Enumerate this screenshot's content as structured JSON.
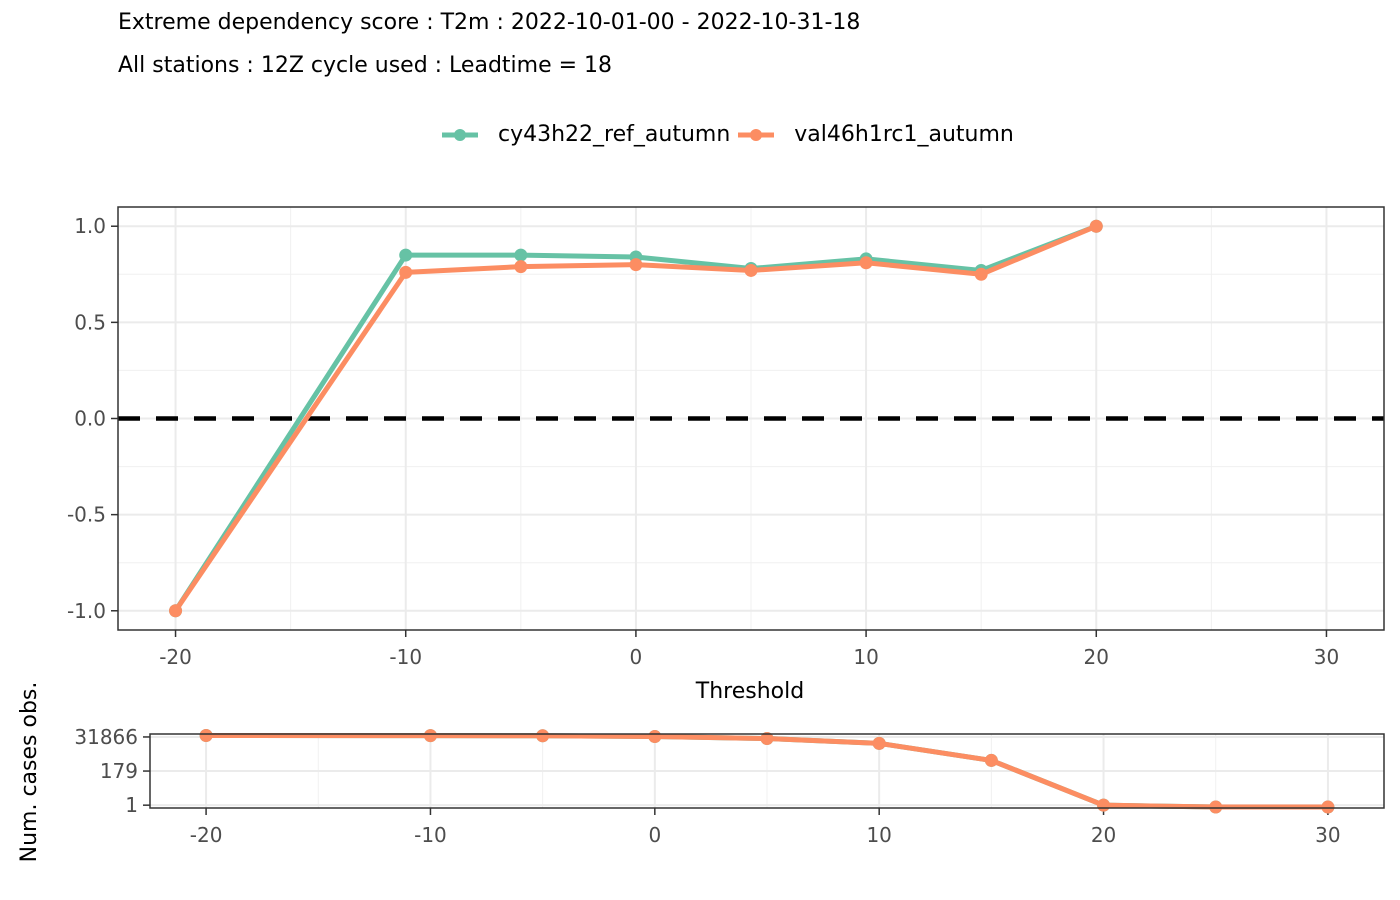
{
  "chart_data": [
    {
      "type": "line",
      "title": "Extreme dependency score : T2m : 2022-10-01-00 - 2022-10-31-18",
      "subtitle": "All stations : 12Z cycle used : Leadtime = 18",
      "xlabel": "Threshold",
      "ylabel": "",
      "xlim": [
        -22.5,
        32.5
      ],
      "ylim": [
        -1.1,
        1.1
      ],
      "x_ticks": [
        "-20",
        "-10",
        "0",
        "10",
        "20",
        "30"
      ],
      "y_ticks": [
        "-1.0",
        "-0.5",
        "0.0",
        "0.5",
        "1.0"
      ],
      "grid": true,
      "legend_position": "top",
      "reference_line": {
        "y": 0,
        "style": "dashed",
        "color": "#000000"
      },
      "series": [
        {
          "name": "cy43h22_ref_autumn",
          "color": "#66c2a5",
          "x": [
            -20,
            -10,
            -5,
            0,
            5,
            10,
            15,
            20
          ],
          "y": [
            -1.0,
            0.85,
            0.85,
            0.84,
            0.78,
            0.83,
            0.77,
            1.0
          ]
        },
        {
          "name": "val46h1rc1_autumn",
          "color": "#fc8d62",
          "x": [
            -20,
            -10,
            -5,
            0,
            5,
            10,
            15,
            20
          ],
          "y": [
            -1.0,
            0.76,
            0.79,
            0.8,
            0.77,
            0.81,
            0.75,
            1.0
          ]
        }
      ]
    },
    {
      "type": "line",
      "title": "",
      "xlabel": "",
      "ylabel": "Num. cases obs.",
      "scale": "log",
      "xlim": [
        -22.5,
        32.5
      ],
      "x_ticks": [
        "-20",
        "-10",
        "0",
        "10",
        "20",
        "30"
      ],
      "y_ticks": [
        "1",
        "179",
        "31866"
      ],
      "grid": true,
      "series": [
        {
          "name": "cy43h22_ref_autumn",
          "color": "#66c2a5",
          "x": [
            -20,
            -10,
            -5,
            0,
            5,
            10,
            15,
            20,
            25,
            30
          ],
          "y": [
            40000,
            39000,
            38000,
            34000,
            25000,
            12000,
            900,
            1,
            0.75,
            0.75
          ]
        },
        {
          "name": "val46h1rc1_autumn",
          "color": "#fc8d62",
          "x": [
            -20,
            -10,
            -5,
            0,
            5,
            10,
            15,
            20,
            25,
            30
          ],
          "y": [
            40000,
            39000,
            38000,
            34000,
            25000,
            12000,
            900,
            1,
            0.75,
            0.75
          ]
        }
      ]
    }
  ]
}
